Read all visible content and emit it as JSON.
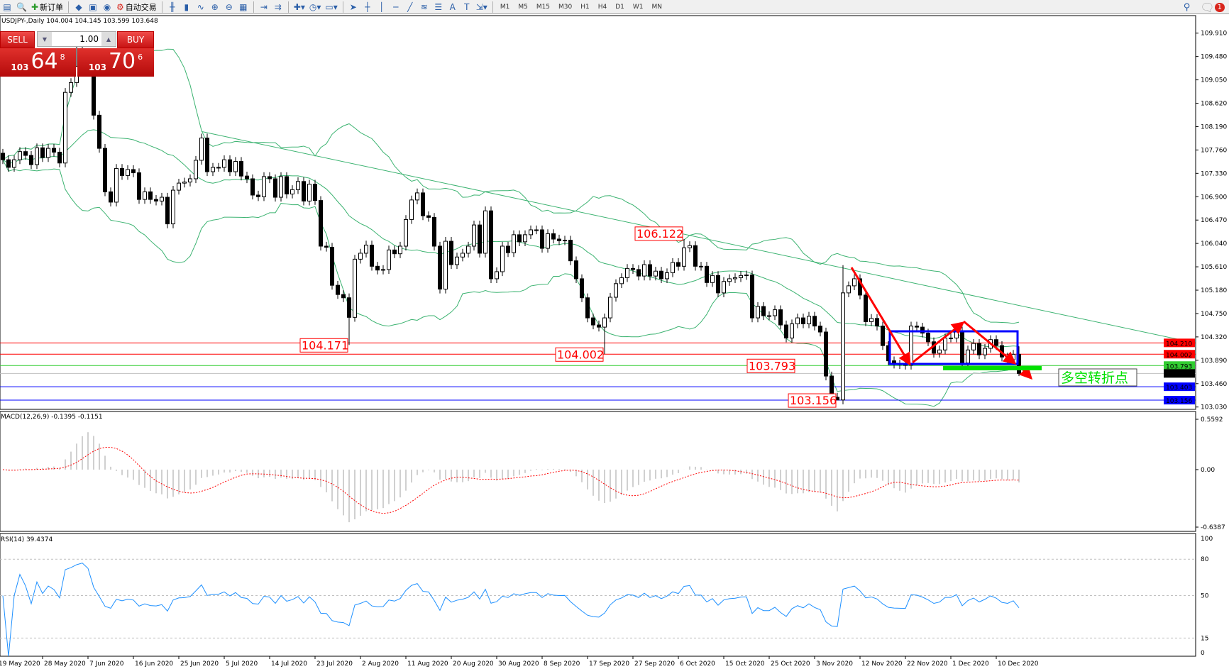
{
  "toolbar": {
    "icons": [
      "new-chart-icon",
      "zoom-chart-icon",
      "new-order-icon",
      "market-watch-icon",
      "navigator-icon",
      "signals-icon",
      "auto-trading-icon",
      "bar-chart-icon",
      "candlestick-icon",
      "line-chart-icon",
      "zoom-in-icon",
      "zoom-out-icon",
      "tile-windows-icon",
      "chart-shift-icon",
      "auto-scroll-icon",
      "indicators-icon",
      "periods-icon",
      "templates-icon",
      "cursor-icon",
      "crosshair-icon",
      "vertical-line-icon",
      "horizontal-line-icon",
      "trendline-icon",
      "fibonacci-icon",
      "fibo-fan-icon",
      "text-icon",
      "text-label-icon",
      "arrows-icon"
    ],
    "new_order": "新订单",
    "auto_trading": "自动交易",
    "timeframes": [
      "M1",
      "M5",
      "M15",
      "M30",
      "H1",
      "H4",
      "D1",
      "W1",
      "MN"
    ],
    "notifications": "1"
  },
  "chart": {
    "title": "USDJPY-,Daily  104.004 104.145 103.599 103.648",
    "sell": "SELL",
    "buy": "BUY",
    "lot": "1.00",
    "bid": {
      "big": "103",
      "main": "64",
      "pip": "8"
    },
    "ask": {
      "big": "103",
      "main": "70",
      "pip": "6"
    }
  },
  "chart_data": {
    "type": "candlestick",
    "symbol": "USDJPY-",
    "period": "Daily",
    "price_range": [
      103.03,
      109.91
    ],
    "price_ticks": [
      "109.910",
      "109.480",
      "109.050",
      "108.620",
      "108.190",
      "107.760",
      "107.330",
      "106.900",
      "106.470",
      "106.040",
      "105.610",
      "105.180",
      "104.750",
      "104.320",
      "103.890",
      "103.460",
      "103.030"
    ],
    "first_open": 107.7,
    "close": [
      107.58,
      107.44,
      107.58,
      107.73,
      107.66,
      107.49,
      107.8,
      107.62,
      107.79,
      107.72,
      107.52,
      108.82,
      109.0,
      109.3,
      109.5,
      109.3,
      108.4,
      107.79,
      106.99,
      106.8,
      107.42,
      107.29,
      107.4,
      107.34,
      106.85,
      106.99,
      106.85,
      106.82,
      106.89,
      106.4,
      107.02,
      107.15,
      107.17,
      107.23,
      107.57,
      107.98,
      107.36,
      107.44,
      107.44,
      107.58,
      107.36,
      107.55,
      107.28,
      107.23,
      106.93,
      106.9,
      107.27,
      107.23,
      106.89,
      107.27,
      106.95,
      107.03,
      107.18,
      106.82,
      107.13,
      106.83,
      105.99,
      105.97,
      105.27,
      105.1,
      105.04,
      104.68,
      105.75,
      105.86,
      106.01,
      105.62,
      105.55,
      105.56,
      105.92,
      105.85,
      105.99,
      106.48,
      106.84,
      106.97,
      106.55,
      106.52,
      105.99,
      105.2,
      106.08,
      105.65,
      105.79,
      105.86,
      105.99,
      106.38,
      105.86,
      106.64,
      105.39,
      105.52,
      105.99,
      105.87,
      106.2,
      106.07,
      106.2,
      106.29,
      106.29,
      105.95,
      106.22,
      106.12,
      106.09,
      106.1,
      105.72,
      105.39,
      105.04,
      104.67,
      104.54,
      104.5,
      104.67,
      105.05,
      105.3,
      105.41,
      105.58,
      105.56,
      105.44,
      105.65,
      105.44,
      105.53,
      105.39,
      105.5,
      105.69,
      105.62,
      105.96,
      106.0,
      105.62,
      105.62,
      105.32,
      105.45,
      105.13,
      105.34,
      105.39,
      105.41,
      105.45,
      105.46,
      104.67,
      104.88,
      104.71,
      104.71,
      104.82,
      104.54,
      104.3,
      104.56,
      104.67,
      104.56,
      104.7,
      104.52,
      104.41,
      103.6,
      103.21,
      103.16,
      105.13,
      105.26,
      105.39,
      105.09,
      104.6,
      104.66,
      104.52,
      104.16,
      103.88,
      103.82,
      103.81,
      103.8,
      104.52,
      104.5,
      104.39,
      104.23,
      104.02,
      104.08,
      104.3,
      104.3,
      104.43,
      103.84,
      104.08,
      104.2,
      103.99,
      104.11,
      104.27,
      104.16,
      103.95,
      103.9,
      104.0,
      103.648
    ],
    "extremes": {
      "13": {
        "high": 109.85
      },
      "14": {
        "high": 109.9
      },
      "61": {
        "low": 104.171
      },
      "106": {
        "low": 104.002
      },
      "120": {
        "high": 106.122
      },
      "147": {
        "low": 103.156
      },
      "148": {
        "high": 105.64
      },
      "179": {
        "high": 104.145,
        "low": 103.599
      }
    },
    "date_ticks": [
      "19 May 2020",
      "28 May 2020",
      "7 Jun 2020",
      "16 Jun 2020",
      "25 Jun 2020",
      "5 Jul 2020",
      "14 Jul 2020",
      "23 Jul 2020",
      "2 Aug 2020",
      "11 Aug 2020",
      "20 Aug 2020",
      "30 Aug 2020",
      "8 Sep 2020",
      "17 Sep 2020",
      "27 Sep 2020",
      "6 Oct 2020",
      "15 Oct 2020",
      "25 Oct 2020",
      "3 Nov 2020",
      "12 Nov 2020",
      "22 Nov 2020",
      "1 Dec 2020",
      "10 Dec 2020"
    ],
    "hlines": [
      {
        "price": 104.21,
        "label": "104.210",
        "color": "#ff0000"
      },
      {
        "price": 104.002,
        "label": "104.002",
        "color": "#ff0000"
      },
      {
        "price": 103.793,
        "label": "103.793",
        "color": "#32cd32"
      },
      {
        "price": 103.648,
        "label": "103.648",
        "color": "#c0c0c0",
        "tag": "#000000"
      },
      {
        "price": 103.403,
        "label": "103.403",
        "color": "#0000ff"
      },
      {
        "price": 103.156,
        "label": "103.156",
        "color": "#0000ff"
      }
    ],
    "price_labels": [
      {
        "text": "104.171",
        "bar": 61,
        "price": 104.171
      },
      {
        "text": "104.002",
        "bar": 106,
        "price": 104.002
      },
      {
        "text": "106.122",
        "bar": 120,
        "price": 106.122
      },
      {
        "text": "103.793",
        "bar": 140,
        "price": 103.793
      },
      {
        "text": "103.156",
        "bar": 147,
        "price": 103.156
      }
    ],
    "trendline": {
      "from": {
        "bar": 35,
        "price": 108.1
      },
      "to": {
        "bar": 210,
        "price": 104.21
      },
      "color": "#3cb371"
    },
    "annotation": {
      "text": "多空转折点",
      "color": "#00e000"
    },
    "bollinger": {
      "period": 20,
      "deviation": 2,
      "color": "#3cb371"
    },
    "macd": {
      "label": "MACD(12,26,9) -0.1395 -0.1151",
      "range": [
        -0.6387,
        0.5592
      ],
      "ticks": [
        "0.5592",
        "0.00",
        "-0.6387"
      ],
      "hist_color": "#c0c0c0",
      "signal_color": "#ff0000"
    },
    "rsi": {
      "label": "RSI(14) 39.4374",
      "period": 14,
      "levels": [
        80,
        50,
        15
      ],
      "ticks": [
        "100",
        "80",
        "50",
        "15",
        "0"
      ],
      "color": "#1e90ff"
    },
    "colors": {
      "up": "#ffffff",
      "down": "#000000",
      "box": "#0000ff",
      "arrow": "#ff0000",
      "support": "#00e000"
    }
  }
}
